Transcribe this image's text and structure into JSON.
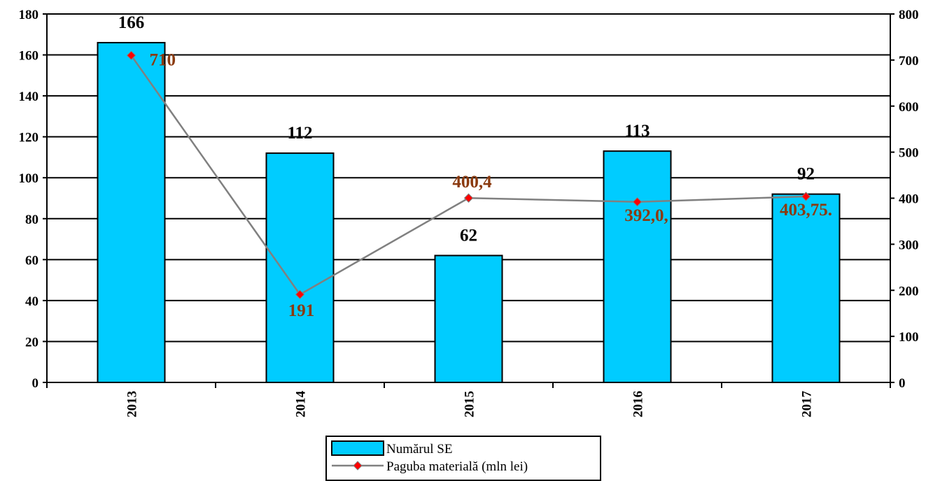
{
  "chart_data": {
    "type": "bar",
    "categories": [
      "2013",
      "2014",
      "2015",
      "2016",
      "2017"
    ],
    "series": [
      {
        "name": "Numărul SE",
        "type": "bar",
        "axis": "left",
        "values": [
          166,
          112,
          62,
          113,
          92
        ],
        "labels": [
          "166",
          "112",
          "62",
          "113",
          "92"
        ],
        "color": "#00ccff"
      },
      {
        "name": "Paguba materială (mln lei)",
        "type": "line",
        "axis": "right",
        "values": [
          710,
          191,
          400.4,
          392.0,
          403.75
        ],
        "labels": [
          "710",
          "191",
          "400,4",
          "392,0,",
          "403,75."
        ],
        "color": "#808080",
        "marker_color": "#ff0000"
      }
    ],
    "y_left": {
      "min": 0,
      "max": 180,
      "step": 20
    },
    "y_right": {
      "min": 0,
      "max": 800,
      "step": 100
    },
    "grid": true,
    "legend": "bottom-center"
  }
}
